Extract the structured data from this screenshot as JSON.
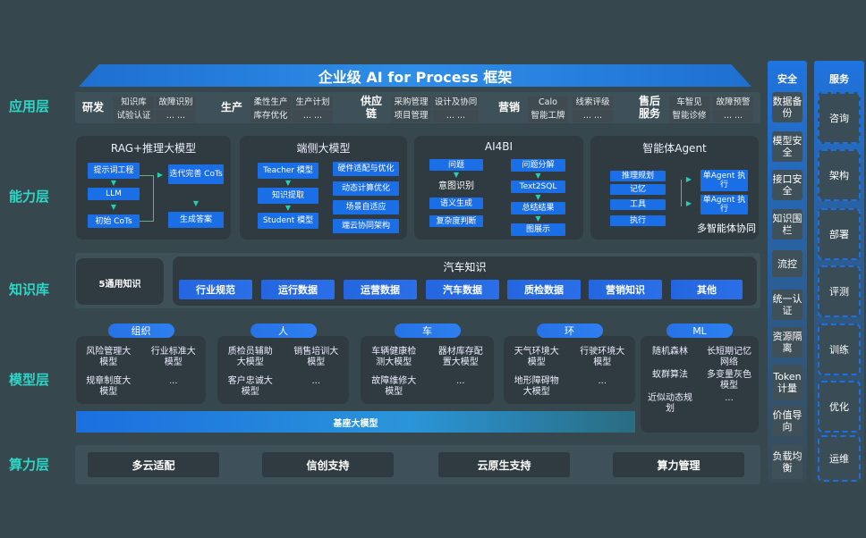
{
  "title": "企业级 AI for Process 框架",
  "layers": [
    "应用层",
    "能力层",
    "知识库",
    "模型层",
    "算力层"
  ],
  "app": [
    {
      "name": "研发",
      "items": [
        "知识库",
        "故障识别",
        "试验认证",
        "... ..."
      ]
    },
    {
      "name": "生产",
      "items": [
        "柔性生产",
        "生产计划",
        "库存优化",
        "... ..."
      ]
    },
    {
      "name": "供应链",
      "items": [
        "采购管理",
        "设计及协同",
        "项目管理",
        "... ..."
      ]
    },
    {
      "name": "营销",
      "items": [
        "Calo",
        "线索评级",
        "智能工牌",
        "... ..."
      ]
    },
    {
      "name": "售后服务",
      "items": [
        "车智见",
        "故障预警",
        "智能诊修",
        "... ..."
      ]
    }
  ],
  "capability": {
    "rag": {
      "title": "RAG+推理大模型",
      "items": [
        "提示词工程",
        "LLM",
        "初始 CoTs",
        "迭代完善 CoTs",
        "生成答案"
      ]
    },
    "edge": {
      "title": "端侧大模型",
      "left": [
        "Teacher 模型",
        "知识提取",
        "Student 模型"
      ],
      "right": [
        "硬件适配与优化",
        "动态计算优化",
        "场景自适应",
        "端云协同架构"
      ]
    },
    "ai4bi": {
      "title": "AI4BI",
      "left": [
        "问题",
        "意图识别",
        "语义生成",
        "复杂度判断"
      ],
      "right": [
        "问题分解",
        "Text2SQL",
        "总结结果",
        "图展示"
      ]
    },
    "agent": {
      "title": "智能体Agent",
      "left": [
        "推理规划",
        "记忆",
        "工具",
        "执行"
      ],
      "right": [
        "单Agent 执行",
        "单Agent 执行"
      ],
      "footer": "多智能体协同"
    }
  },
  "knowledge": {
    "general": "5通用知识",
    "auto_title": "汽车知识",
    "items": [
      "行业规范",
      "运行数据",
      "运营数据",
      "汽车数据",
      "质检数据",
      "营销知识",
      "其他"
    ]
  },
  "models": [
    {
      "name": "组织",
      "items": [
        "风险管理大模型",
        "行业标准大模型",
        "规章制度大模型",
        "..."
      ]
    },
    {
      "name": "人",
      "items": [
        "质检员辅助大模型",
        "销售培训大模型",
        "客户忠诚大模型",
        "..."
      ]
    },
    {
      "name": "车",
      "items": [
        "车辆健康检测大模型",
        "器材库存配置大模型",
        "故障维修大模型",
        "..."
      ]
    },
    {
      "name": "环",
      "items": [
        "天气环境大模型",
        "行驶环境大模型",
        "地形障碍物大模型",
        "..."
      ]
    },
    {
      "name": "ML",
      "items": [
        "随机森林",
        "长短期记忆网络",
        "蚁群算法",
        "多变量灰色模型",
        "近似动态规划",
        "..."
      ]
    }
  ],
  "foundation": "基座大模型",
  "compute": [
    "多云适配",
    "信创支持",
    "云原生支持",
    "算力管理"
  ],
  "security": {
    "title": "安全",
    "items": [
      "数据备份",
      "模型安全",
      "接口安全",
      "知识围栏",
      "流控",
      "统一认证",
      "资源隔离",
      "Token计量",
      "价值导向",
      "负载均衡"
    ]
  },
  "service": {
    "title": "服务",
    "items": [
      "咨询",
      "架构",
      "部署",
      "评测",
      "训练",
      "优化",
      "运维"
    ]
  }
}
